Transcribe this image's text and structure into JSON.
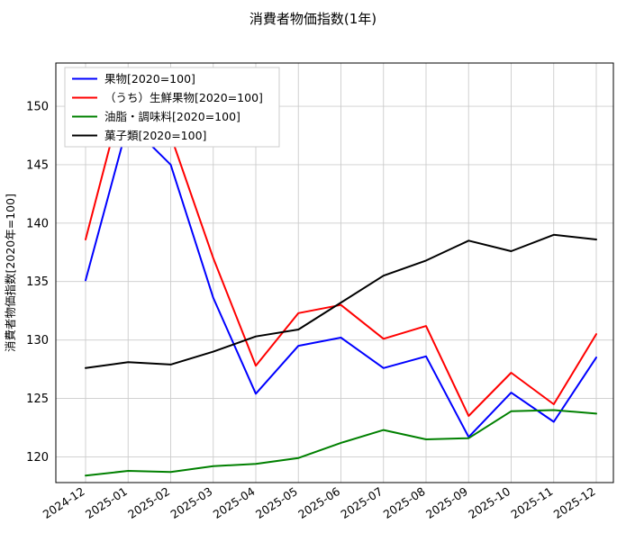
{
  "chart_data": {
    "type": "line",
    "title": "消費者物価指数(1年)",
    "xlabel": "",
    "ylabel": "消費者物価指数[2020年=100]",
    "ylim": [
      117.8,
      153.7
    ],
    "yticks": [
      120,
      125,
      130,
      135,
      140,
      145,
      150
    ],
    "grid": true,
    "legend_position": "upper left",
    "categories": [
      "2024-12",
      "2025-01",
      "2025-02",
      "2025-03",
      "2025-04",
      "2025-05",
      "2025-06",
      "2025-07",
      "2025-08",
      "2025-09",
      "2025-10",
      "2025-11",
      "2025-12"
    ],
    "series": [
      {
        "name": "果物[2020=100]",
        "color": "#0000ff",
        "values": [
          135.1,
          148.6,
          145.0,
          133.6,
          125.4,
          129.5,
          130.2,
          127.6,
          128.6,
          121.7,
          125.5,
          123.0,
          128.5
        ]
      },
      {
        "name": "（うち）生鮮果物[2020=100]",
        "color": "#ff0000",
        "values": [
          138.6,
          152.6,
          147.5,
          137.0,
          127.8,
          132.3,
          133.0,
          130.1,
          131.2,
          123.5,
          127.2,
          124.5,
          130.5
        ]
      },
      {
        "name": "油脂・調味料[2020=100]",
        "color": "#008000",
        "values": [
          118.4,
          118.8,
          118.7,
          119.2,
          119.4,
          119.9,
          121.2,
          122.3,
          121.5,
          121.6,
          123.9,
          124.0,
          123.7
        ]
      },
      {
        "name": "菓子類[2020=100]",
        "color": "#000000",
        "values": [
          127.6,
          128.1,
          127.9,
          129.0,
          130.3,
          130.9,
          133.2,
          135.5,
          136.8,
          138.5,
          137.6,
          139.0,
          138.6
        ]
      }
    ]
  }
}
